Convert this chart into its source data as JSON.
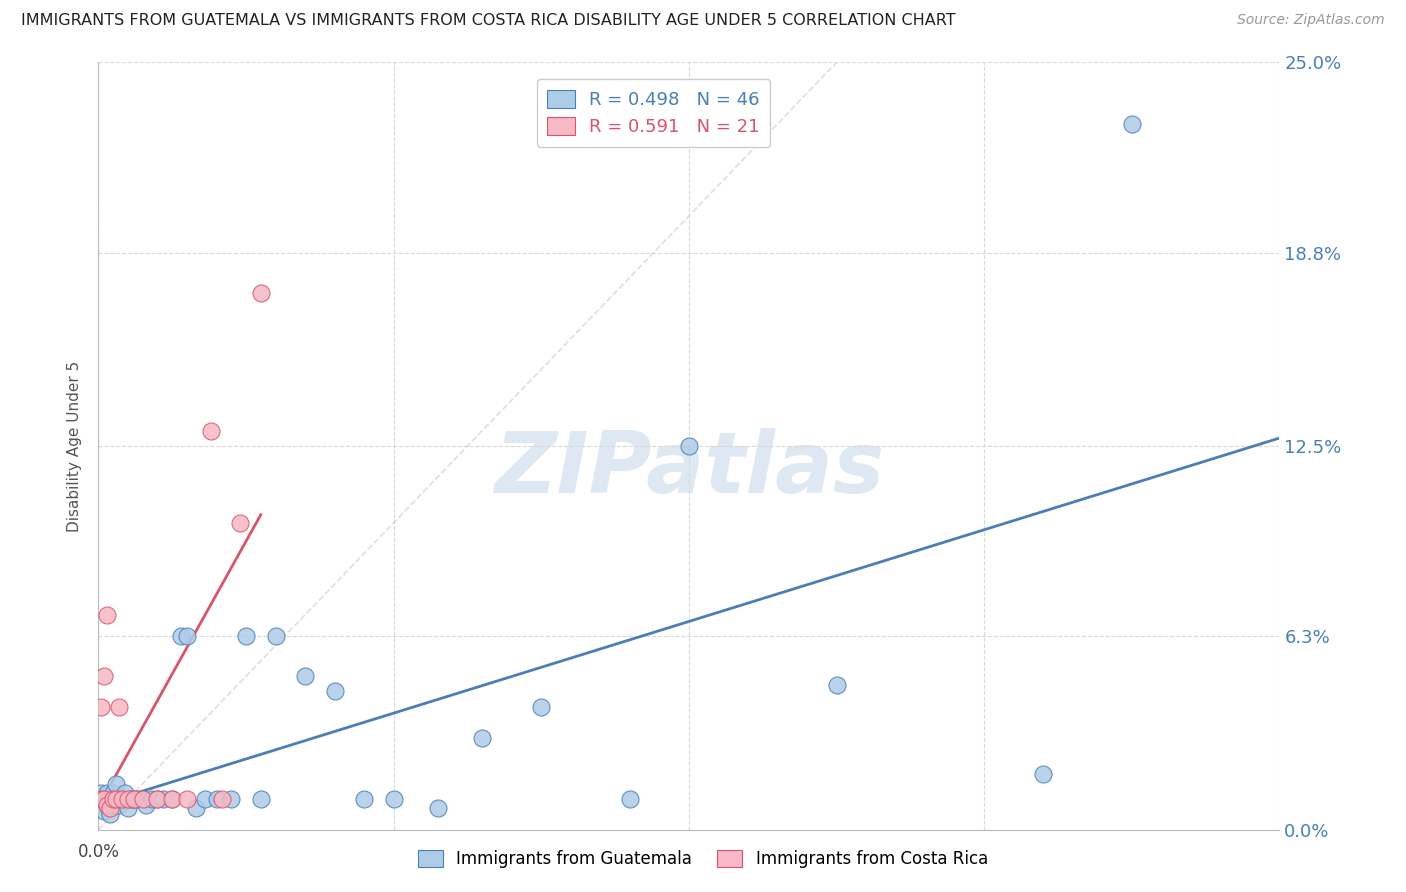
{
  "title": "IMMIGRANTS FROM GUATEMALA VS IMMIGRANTS FROM COSTA RICA DISABILITY AGE UNDER 5 CORRELATION CHART",
  "source": "Source: ZipAtlas.com",
  "ylabel": "Disability Age Under 5",
  "legend_label_guatemala": "Immigrants from Guatemala",
  "legend_label_costarica": "Immigrants from Costa Rica",
  "xlim": [
    0.0,
    0.4
  ],
  "ylim": [
    0.0,
    0.25
  ],
  "xticks": [
    0.0,
    0.1,
    0.2,
    0.3,
    0.4
  ],
  "yticks": [
    0.0,
    0.063,
    0.125,
    0.188,
    0.25
  ],
  "ytick_labels": [
    "0.0%",
    "6.3%",
    "12.5%",
    "18.8%",
    "25.0%"
  ],
  "legend_R_guatemala": "0.498",
  "legend_N_guatemala": "46",
  "legend_R_costarica": "0.591",
  "legend_N_costarica": "21",
  "color_guatemala_fill": "#aecce8",
  "color_costarica_fill": "#f5b8c4",
  "color_regression_guatemala": "#4a7fb5",
  "color_regression_costarica": "#d9546a",
  "color_diagonal": "#d0d0d0",
  "color_grid": "#d8d8d8",
  "background_color": "#ffffff",
  "watermark_color": "#dde8f3",
  "guatemala_x": [
    0.001,
    0.001,
    0.002,
    0.002,
    0.003,
    0.003,
    0.004,
    0.004,
    0.005,
    0.005,
    0.006,
    0.006,
    0.007,
    0.008,
    0.009,
    0.01,
    0.011,
    0.012,
    0.013,
    0.015,
    0.016,
    0.018,
    0.02,
    0.022,
    0.025,
    0.028,
    0.03,
    0.033,
    0.036,
    0.04,
    0.045,
    0.05,
    0.055,
    0.06,
    0.07,
    0.08,
    0.09,
    0.1,
    0.115,
    0.13,
    0.15,
    0.18,
    0.2,
    0.25,
    0.32,
    0.35
  ],
  "guatemala_y": [
    0.008,
    0.012,
    0.006,
    0.01,
    0.008,
    0.012,
    0.005,
    0.01,
    0.008,
    0.012,
    0.008,
    0.015,
    0.008,
    0.01,
    0.012,
    0.007,
    0.01,
    0.01,
    0.01,
    0.01,
    0.008,
    0.01,
    0.01,
    0.01,
    0.01,
    0.063,
    0.063,
    0.007,
    0.01,
    0.01,
    0.01,
    0.063,
    0.01,
    0.063,
    0.05,
    0.045,
    0.01,
    0.01,
    0.007,
    0.03,
    0.04,
    0.01,
    0.125,
    0.047,
    0.018,
    0.23
  ],
  "costarica_x": [
    0.001,
    0.001,
    0.002,
    0.002,
    0.003,
    0.003,
    0.004,
    0.005,
    0.006,
    0.007,
    0.008,
    0.01,
    0.012,
    0.015,
    0.02,
    0.025,
    0.03,
    0.038,
    0.042,
    0.048,
    0.055
  ],
  "costarica_y": [
    0.01,
    0.04,
    0.01,
    0.05,
    0.008,
    0.07,
    0.007,
    0.01,
    0.01,
    0.04,
    0.01,
    0.01,
    0.01,
    0.01,
    0.01,
    0.01,
    0.01,
    0.13,
    0.01,
    0.1,
    0.175
  ]
}
